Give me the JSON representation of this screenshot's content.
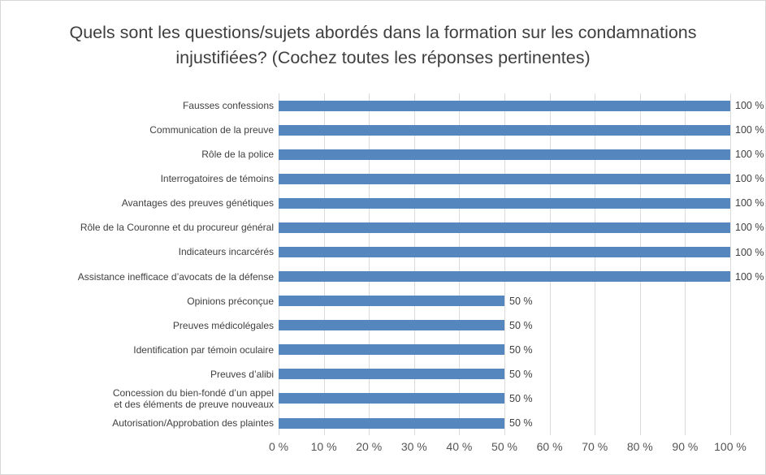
{
  "chart_data": {
    "type": "bar",
    "orientation": "horizontal",
    "title": "Quels sont les questions/sujets abordés dans la formation sur les condamnations injustifiées? (Cochez toutes les réponses pertinentes)",
    "categories": [
      "Fausses confessions",
      "Communication de la preuve",
      "Rôle de la police",
      "Interrogatoires de témoins",
      "Avantages des preuves génétiques",
      "Rôle de la Couronne et du procureur général",
      "Indicateurs incarcérés",
      "Assistance inefficace d’avocats de la défense",
      "Opinions préconçue",
      "Preuves médicolégales",
      "Identification par témoin oculaire",
      "Preuves d’alibi",
      "Concession du bien-fondé d’un appel\net des éléments de preuve nouveaux",
      "Autorisation/Approbation des plaintes"
    ],
    "values": [
      100,
      100,
      100,
      100,
      100,
      100,
      100,
      100,
      50,
      50,
      50,
      50,
      50,
      50
    ],
    "value_labels": [
      "100 %",
      "100 %",
      "100 %",
      "100 %",
      "100 %",
      "100 %",
      "100 %",
      "100 %",
      "50 %",
      "50 %",
      "50 %",
      "50 %",
      "50 %",
      "50 %"
    ],
    "xticks": [
      0,
      10,
      20,
      30,
      40,
      50,
      60,
      70,
      80,
      90,
      100
    ],
    "xticklabels": [
      "0 %",
      "10 %",
      "20 %",
      "30 %",
      "40 %",
      "50 %",
      "60 %",
      "70 %",
      "80 %",
      "90 %",
      "100 %"
    ],
    "xlim": [
      0,
      100
    ],
    "grid": "vertical-gridlines-on",
    "legend": "none",
    "bar_color": "#5586be",
    "gridline_color": "#dadada",
    "title_color": "#3f3f3f",
    "label_color": "#404040",
    "axis_label_color": "#555555"
  }
}
